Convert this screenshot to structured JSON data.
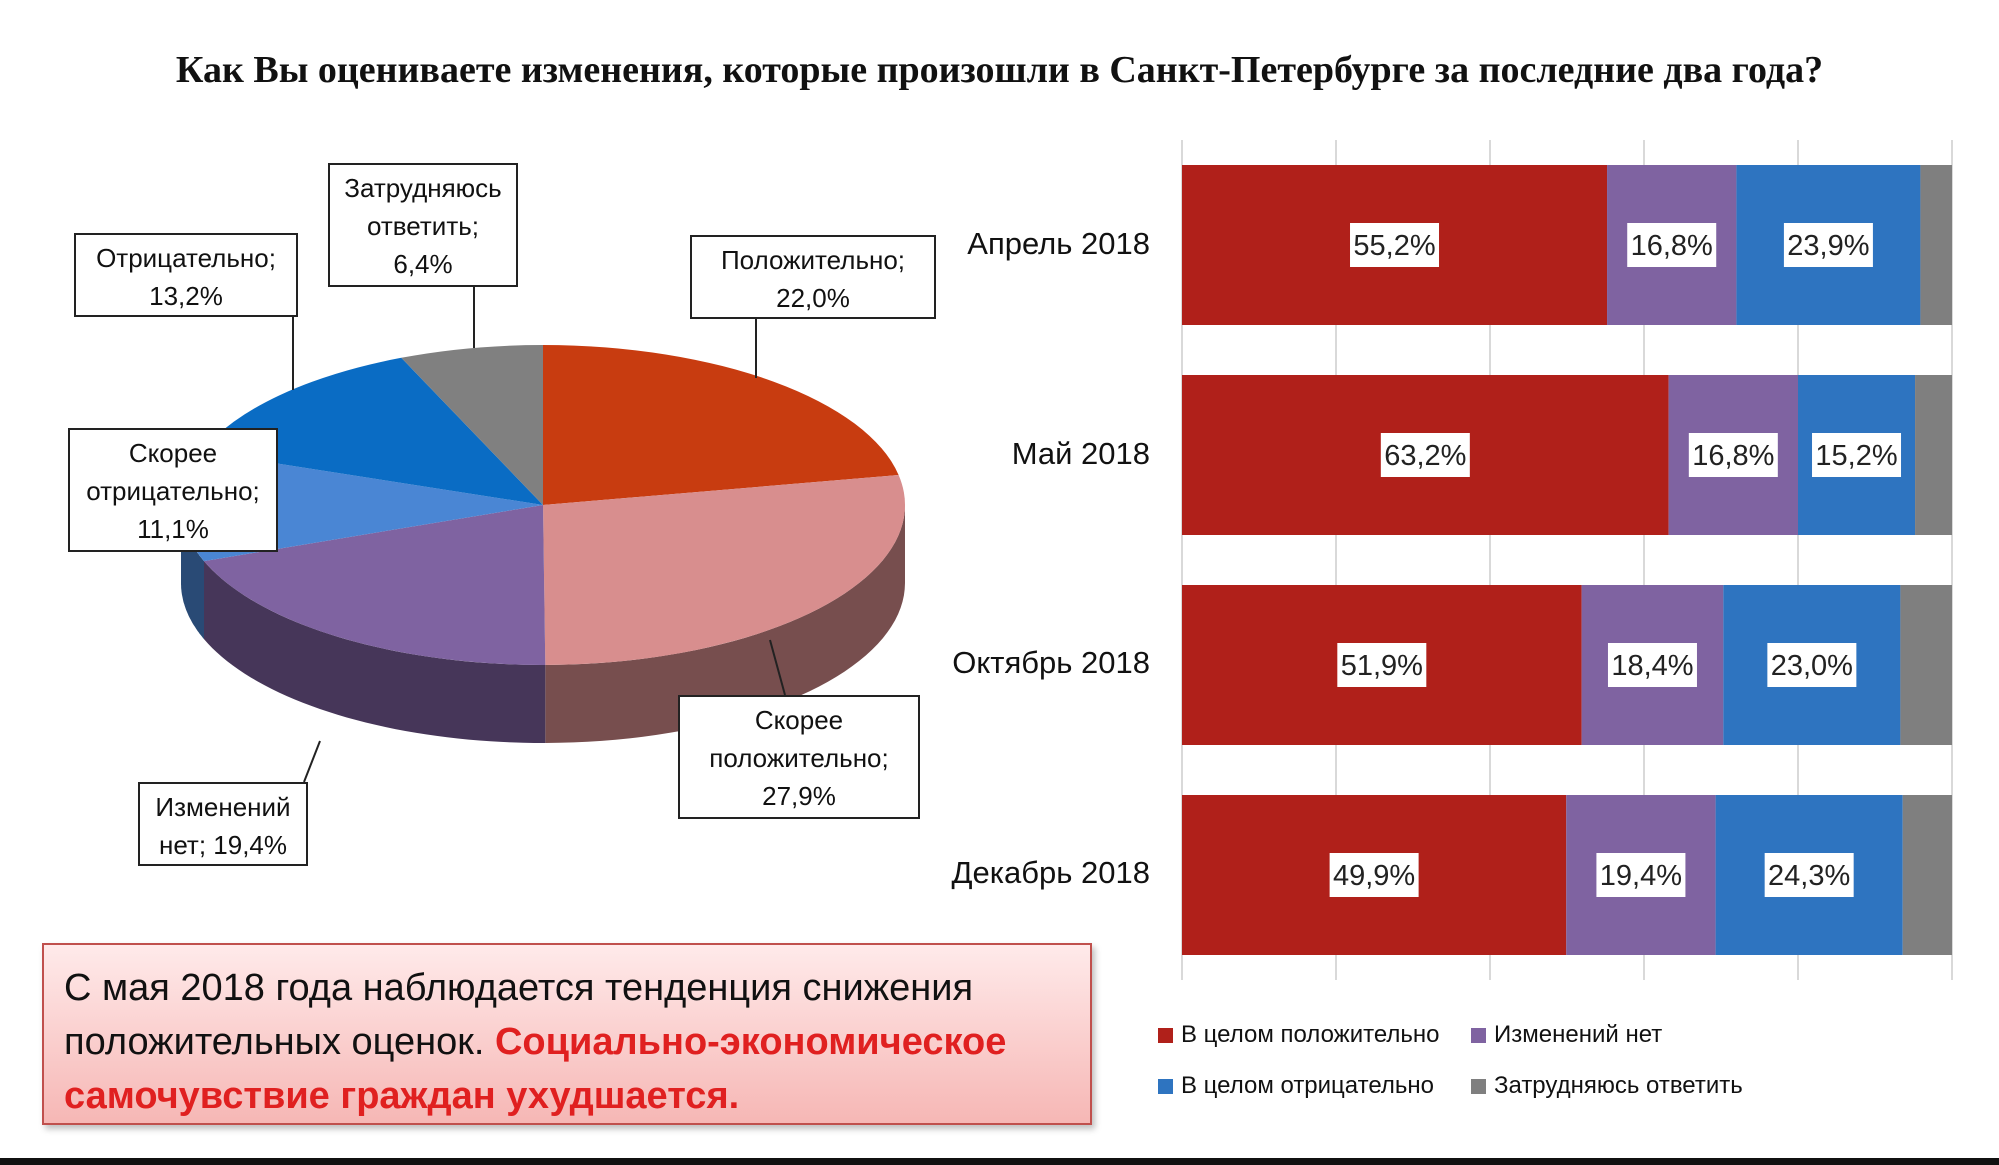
{
  "title": "Как Вы оцениваете изменения, которые произошли в Санкт-Петербурге за последние два года?",
  "colors": {
    "pie_positive": "#c83c10",
    "pie_rather_positive": "#d88e8e",
    "pie_no_change": "#7f63a1",
    "pie_rather_negative": "#4a86d4",
    "pie_negative": "#0a6cc4",
    "pie_hard": "#808080",
    "bar_positive": "#b0201a",
    "bar_no_change": "#7f63a1",
    "bar_negative": "#2e74c0",
    "bar_hard": "#7f7f7f"
  },
  "pie_labels": {
    "positive_1": "Положительно;",
    "positive_2": "22,0%",
    "rather_positive_1": "Скорее",
    "rather_positive_2": "положительно;",
    "rather_positive_3": "27,9%",
    "no_change_1": "Изменений",
    "no_change_2": "нет; 19,4%",
    "rather_negative_1": "Скорее",
    "rather_negative_2": "отрицательно;",
    "rather_negative_3": "11,1%",
    "negative_1": "Отрицательно;",
    "negative_2": "13,2%",
    "hard_1": "Затрудняюсь",
    "hard_2": "ответить;",
    "hard_3": "6,4%"
  },
  "note": {
    "plain": "С мая 2018 года наблюдается тенденция снижения положительных оценок. ",
    "highlight": "Социально-экономическое самочувствие граждан ухудшается."
  },
  "chart_data": [
    {
      "type": "pie",
      "slices": [
        {
          "name": "Положительно",
          "value": 22.0,
          "label": "22,0%"
        },
        {
          "name": "Скорее положительно",
          "value": 27.9,
          "label": "27,9%"
        },
        {
          "name": "Изменений нет",
          "value": 19.4,
          "label": "19,4%"
        },
        {
          "name": "Скорее отрицательно",
          "value": 11.1,
          "label": "11,1%"
        },
        {
          "name": "Отрицательно",
          "value": 13.2,
          "label": "13,2%"
        },
        {
          "name": "Затрудняюсь ответить",
          "value": 6.4,
          "label": "6,4%"
        }
      ]
    },
    {
      "type": "bar",
      "orientation": "horizontal",
      "stacked": true,
      "categories": [
        "Апрель 2018",
        "Май 2018",
        "Октябрь 2018",
        "Декабрь 2018"
      ],
      "series": [
        {
          "name": "В целом положительно",
          "values": [
            55.2,
            63.2,
            51.9,
            49.9
          ],
          "labels": [
            "55,2%",
            "63,2%",
            "51,9%",
            "49,9%"
          ]
        },
        {
          "name": "Изменений нет",
          "values": [
            16.8,
            16.8,
            18.4,
            19.4
          ],
          "labels": [
            "16,8%",
            "16,8%",
            "18,4%",
            "19,4%"
          ]
        },
        {
          "name": "В целом отрицательно",
          "values": [
            23.9,
            15.2,
            23.0,
            24.3
          ],
          "labels": [
            "23,9%",
            "15,2%",
            "23,0%",
            "24,3%"
          ]
        },
        {
          "name": "Затрудняюсь ответить",
          "values": [
            4.1,
            4.8,
            6.7,
            6.4
          ]
        }
      ],
      "xlim": [
        0,
        100
      ],
      "grid": true,
      "legend": "bottom"
    }
  ]
}
